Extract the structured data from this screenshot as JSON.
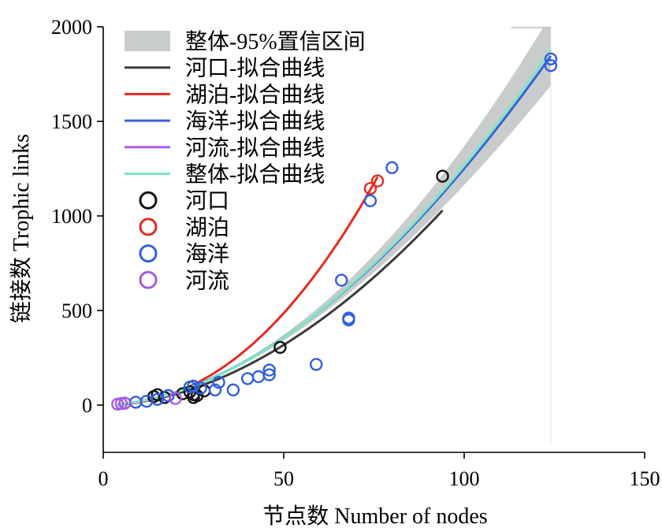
{
  "chart_data": {
    "type": "scatter",
    "xlabel": "节点数 Number of nodes",
    "ylabel": "链接数 Trophic links",
    "xlim": [
      0,
      150
    ],
    "ylim": [
      -250,
      2000
    ],
    "xticks": [
      0,
      50,
      100,
      150
    ],
    "yticks": [
      0,
      500,
      1000,
      1500,
      2000
    ],
    "xtick_labels": [
      "0",
      "50",
      "100",
      "150"
    ],
    "ytick_labels": [
      "0",
      "500",
      "1000",
      "1500",
      "2000"
    ],
    "grid": false,
    "legend_position": "top-left",
    "confidence_band": {
      "name": "整体-95%置信区间",
      "color": "#c8cccc",
      "x_range": [
        4,
        124
      ],
      "center": {
        "a": 0.277,
        "b": 1.83
      },
      "relative_halfwidth_at": [
        [
          4,
          0.02
        ],
        [
          60,
          0.05
        ],
        [
          124,
          0.1
        ]
      ]
    },
    "fits": [
      {
        "name": "河口-拟合曲线",
        "color": "#3b3b3b",
        "a": 0.22,
        "b": 1.86,
        "x_range": [
          4,
          94
        ]
      },
      {
        "name": "湖泊-拟合曲线",
        "color": "#e52a22",
        "a": 0.1,
        "b": 2.17,
        "x_range": [
          4,
          76
        ]
      },
      {
        "name": "海洋-拟合曲线",
        "color": "#3b5fd9",
        "a": 0.3,
        "b": 1.81,
        "x_range": [
          4,
          124
        ]
      },
      {
        "name": "河流-拟合曲线",
        "color": "#b05ee6",
        "a": 0.25,
        "b": 1.85,
        "x_range": [
          4,
          20
        ]
      },
      {
        "name": "整体-拟合曲线",
        "color": "#7fe6c2",
        "a": 0.277,
        "b": 1.83,
        "x_range": [
          4,
          124
        ]
      }
    ],
    "series": [
      {
        "name": "河口",
        "color": "#111111",
        "points": [
          [
            14,
            45
          ],
          [
            15,
            55
          ],
          [
            17,
            40
          ],
          [
            22,
            60
          ],
          [
            24,
            70
          ],
          [
            25,
            40
          ],
          [
            25,
            55
          ],
          [
            26,
            50
          ],
          [
            28,
            75
          ],
          [
            49,
            305
          ],
          [
            94,
            1210
          ]
        ]
      },
      {
        "name": "湖泊",
        "color": "#e52a22",
        "points": [
          [
            74,
            1145
          ],
          [
            76,
            1185
          ]
        ]
      },
      {
        "name": "海洋",
        "color": "#2f5fe0",
        "points": [
          [
            6,
            10
          ],
          [
            9,
            15
          ],
          [
            12,
            20
          ],
          [
            15,
            30
          ],
          [
            18,
            50
          ],
          [
            24,
            95
          ],
          [
            25,
            100
          ],
          [
            27,
            90
          ],
          [
            31,
            80
          ],
          [
            32,
            120
          ],
          [
            36,
            80
          ],
          [
            40,
            140
          ],
          [
            43,
            150
          ],
          [
            46,
            160
          ],
          [
            46,
            185
          ],
          [
            59,
            215
          ],
          [
            66,
            660
          ],
          [
            68,
            450
          ],
          [
            68,
            460
          ],
          [
            74,
            1080
          ],
          [
            80,
            1255
          ],
          [
            124,
            1795
          ],
          [
            124,
            1830
          ]
        ]
      },
      {
        "name": "河流",
        "color": "#a45be0",
        "points": [
          [
            4,
            5
          ],
          [
            5,
            8
          ],
          [
            6,
            10
          ],
          [
            20,
            35
          ]
        ]
      }
    ]
  }
}
